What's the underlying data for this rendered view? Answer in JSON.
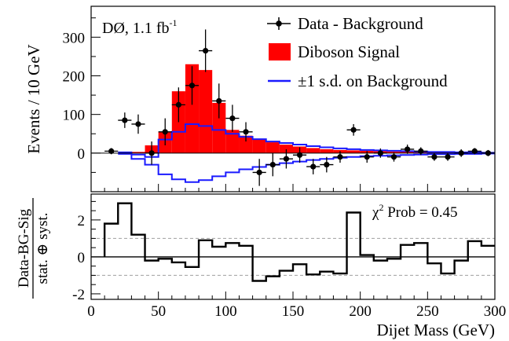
{
  "chart_data": [
    {
      "type": "bar",
      "panel": "top",
      "title": "",
      "annotation": "DØ, 1.1 fb",
      "annotation_sup": "-1",
      "xlabel": "",
      "ylabel": "Events / 10 GeV",
      "xlim": [
        0,
        300
      ],
      "ylim": [
        -100,
        380
      ],
      "yticks": [
        0,
        100,
        200,
        300
      ],
      "legend_position": "top-right",
      "legend": [
        {
          "label": "Data - Background",
          "marker": "point-with-errorbar",
          "color": "#000000"
        },
        {
          "label": "Diboson Signal",
          "marker": "filled-box",
          "color": "#ff0000"
        },
        {
          "label": "±1 s.d. on Background",
          "marker": "line",
          "color": "#1a1aff"
        }
      ],
      "series": [
        {
          "name": "Diboson Signal",
          "kind": "histogram",
          "color": "#ff0000",
          "bin_edges": [
            30,
            40,
            50,
            60,
            70,
            80,
            90,
            100,
            110,
            120,
            130,
            140,
            150,
            160,
            170,
            180,
            190,
            200,
            210,
            220,
            230,
            240,
            250,
            260,
            270,
            280,
            290,
            300
          ],
          "values": [
            3,
            20,
            55,
            160,
            230,
            215,
            130,
            60,
            45,
            35,
            28,
            22,
            17,
            13,
            10,
            8,
            7,
            6,
            5,
            4,
            4,
            3,
            3,
            2,
            2,
            2,
            1
          ]
        },
        {
          "name": "±1 s.d. on Background (upper)",
          "kind": "step",
          "color": "#1a1aff",
          "bin_edges": [
            20,
            30,
            40,
            50,
            60,
            70,
            80,
            90,
            100,
            110,
            120,
            130,
            140,
            150,
            160,
            170,
            180,
            190,
            200,
            210,
            220,
            230,
            240,
            250,
            260,
            270,
            280,
            290,
            300
          ],
          "values": [
            2,
            -4,
            -10,
            35,
            55,
            75,
            70,
            60,
            50,
            42,
            36,
            30,
            26,
            22,
            18,
            15,
            12,
            10,
            8,
            7,
            6,
            5,
            4,
            3,
            3,
            2,
            2,
            1
          ]
        },
        {
          "name": "±1 s.d. on Background (lower)",
          "kind": "step",
          "color": "#1a1aff",
          "bin_edges": [
            20,
            30,
            40,
            50,
            60,
            70,
            80,
            90,
            100,
            110,
            120,
            130,
            140,
            150,
            160,
            170,
            180,
            190,
            200,
            210,
            220,
            230,
            240,
            250,
            260,
            270,
            280,
            290,
            300
          ],
          "values": [
            -2,
            -15,
            -30,
            -55,
            -68,
            -75,
            -70,
            -60,
            -50,
            -42,
            -36,
            -30,
            -26,
            -22,
            -18,
            -15,
            -12,
            -10,
            -8,
            -7,
            -6,
            -5,
            -4,
            -3,
            -3,
            -2,
            -2,
            -1
          ]
        },
        {
          "name": "Data - Background",
          "kind": "points",
          "color": "#000000",
          "x": [
            15,
            25,
            35,
            45,
            55,
            65,
            75,
            85,
            95,
            105,
            115,
            125,
            135,
            145,
            155,
            165,
            175,
            185,
            195,
            205,
            215,
            225,
            235,
            245,
            255,
            265,
            275,
            285,
            295
          ],
          "y": [
            5,
            85,
            75,
            0,
            55,
            125,
            175,
            265,
            135,
            90,
            55,
            -50,
            -30,
            -15,
            -5,
            -35,
            -30,
            -10,
            60,
            -10,
            0,
            -10,
            10,
            5,
            -10,
            -10,
            0,
            5,
            0
          ],
          "yerr": [
            8,
            20,
            25,
            30,
            35,
            45,
            50,
            55,
            45,
            35,
            25,
            35,
            30,
            25,
            20,
            20,
            20,
            15,
            15,
            15,
            12,
            12,
            12,
            10,
            10,
            10,
            10,
            8,
            8
          ]
        }
      ]
    },
    {
      "type": "line",
      "panel": "bottom",
      "title": "",
      "annotation": "χ² Prob = 0.45",
      "annotation_parts": {
        "chi": "χ",
        "sup": "2",
        "rest": " Prob = 0.45"
      },
      "xlabel": "Dijet Mass (GeV)",
      "ylabel_num": "Data-BG-Sig",
      "ylabel_den": "stat. ⊕ syst.",
      "xlim": [
        0,
        300
      ],
      "ylim": [
        -2.3,
        3.4
      ],
      "xticks": [
        0,
        50,
        100,
        150,
        200,
        250,
        300
      ],
      "yticks": [
        -2,
        0,
        2
      ],
      "reference_lines": [
        1,
        -1
      ],
      "series": [
        {
          "name": "",
          "kind": "step",
          "color": "#000000",
          "bin_edges": [
            10,
            20,
            30,
            40,
            50,
            60,
            70,
            80,
            90,
            100,
            110,
            120,
            130,
            140,
            150,
            160,
            170,
            180,
            190,
            200,
            210,
            220,
            230,
            240,
            250,
            260,
            270,
            280,
            290,
            300
          ],
          "values": [
            1.8,
            2.9,
            1.2,
            -0.2,
            -0.1,
            -0.3,
            -0.55,
            0.9,
            0.55,
            0.75,
            0.6,
            -1.3,
            -1.05,
            -0.75,
            -0.4,
            -0.95,
            -0.8,
            -0.9,
            2.4,
            0.1,
            -0.2,
            -0.1,
            0.65,
            0.75,
            -0.35,
            -0.9,
            -0.2,
            0.85,
            0.6
          ]
        }
      ]
    }
  ]
}
